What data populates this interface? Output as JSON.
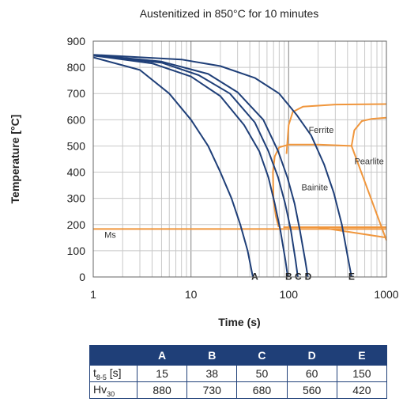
{
  "chart_data": {
    "type": "line",
    "title": "Austenitized in 850°C for 10 minutes",
    "xlabel": "Time (s)",
    "ylabel": "Temperature [°C]",
    "xscale": "log",
    "xlim": [
      1,
      1000
    ],
    "ylim": [
      0,
      900
    ],
    "xticks": [
      {
        "value": 1,
        "label": "1"
      },
      {
        "value": 10,
        "label": "10"
      },
      {
        "value": 100,
        "label": "100"
      },
      {
        "value": 1000,
        "label": "1000"
      }
    ],
    "yticks": [
      0,
      100,
      200,
      300,
      400,
      500,
      600,
      700,
      800,
      900
    ],
    "grid": true,
    "colors": {
      "cooling": "#1f3f78",
      "transformation": "#f0963c"
    },
    "cooling_curves": [
      {
        "name": "A",
        "label_at": [
          45,
          -20
        ],
        "points": [
          [
            1,
            838
          ],
          [
            3,
            790
          ],
          [
            6,
            700
          ],
          [
            10,
            600
          ],
          [
            15,
            500
          ],
          [
            20,
            400
          ],
          [
            26,
            300
          ],
          [
            32,
            200
          ],
          [
            38,
            100
          ],
          [
            43,
            0
          ]
        ]
      },
      {
        "name": "B",
        "label_at": [
          100,
          -20
        ],
        "points": [
          [
            1,
            845
          ],
          [
            4,
            815
          ],
          [
            10,
            765
          ],
          [
            20,
            690
          ],
          [
            35,
            580
          ],
          [
            50,
            480
          ],
          [
            62,
            380
          ],
          [
            72,
            280
          ],
          [
            82,
            180
          ],
          [
            93,
            60
          ],
          [
            98,
            0
          ]
        ]
      },
      {
        "name": "C",
        "label_at": [
          125,
          -20
        ],
        "points": [
          [
            1,
            845
          ],
          [
            5,
            818
          ],
          [
            12,
            770
          ],
          [
            25,
            700
          ],
          [
            45,
            590
          ],
          [
            62,
            480
          ],
          [
            78,
            380
          ],
          [
            92,
            280
          ],
          [
            105,
            180
          ],
          [
            118,
            60
          ],
          [
            124,
            0
          ]
        ]
      },
      {
        "name": "D",
        "label_at": [
          158,
          -20
        ],
        "points": [
          [
            1,
            847
          ],
          [
            5,
            822
          ],
          [
            15,
            775
          ],
          [
            30,
            705
          ],
          [
            55,
            600
          ],
          [
            78,
            480
          ],
          [
            97,
            380
          ],
          [
            115,
            280
          ],
          [
            130,
            180
          ],
          [
            148,
            60
          ],
          [
            157,
            0
          ]
        ]
      },
      {
        "name": "E",
        "label_at": [
          440,
          -20
        ],
        "points": [
          [
            1,
            848
          ],
          [
            8,
            830
          ],
          [
            20,
            805
          ],
          [
            45,
            760
          ],
          [
            80,
            700
          ],
          [
            120,
            620
          ],
          [
            170,
            540
          ],
          [
            230,
            430
          ],
          [
            290,
            320
          ],
          [
            350,
            200
          ],
          [
            405,
            70
          ],
          [
            440,
            0
          ]
        ]
      }
    ],
    "transformation_lines": [
      {
        "points": [
          [
            79,
            190
          ],
          [
            74,
            230
          ],
          [
            70,
            290
          ],
          [
            69,
            400
          ],
          [
            72,
            460
          ],
          [
            80,
            495
          ],
          [
            100,
            505
          ],
          [
            200,
            505
          ],
          [
            440,
            500
          ]
        ]
      },
      {
        "points": [
          [
            88,
            190
          ],
          [
            1000,
            190
          ]
        ]
      },
      {
        "points": [
          [
            1,
            183
          ],
          [
            1000,
            183
          ]
        ]
      },
      {
        "points": [
          [
            200,
            190
          ],
          [
            1000,
            150
          ]
        ]
      },
      {
        "points": [
          [
            95,
            470
          ],
          [
            100,
            580
          ],
          [
            110,
            630
          ],
          [
            140,
            650
          ],
          [
            300,
            658
          ],
          [
            1000,
            660
          ]
        ]
      },
      {
        "points": [
          [
            440,
            500
          ],
          [
            470,
            560
          ],
          [
            560,
            595
          ],
          [
            700,
            603
          ],
          [
            1000,
            608
          ]
        ]
      },
      {
        "points": [
          [
            440,
            500
          ],
          [
            1000,
            140
          ]
        ]
      }
    ],
    "annotations": [
      {
        "text": "Ferrite",
        "at": [
          160,
          550
        ]
      },
      {
        "text": "Pearlite",
        "at": [
          470,
          430
        ]
      },
      {
        "text": "Bainite",
        "at": [
          135,
          330
        ]
      },
      {
        "text": "Ms",
        "at": [
          1.3,
          150
        ]
      }
    ]
  },
  "table": {
    "headers": [
      "",
      "A",
      "B",
      "C",
      "D",
      "E"
    ],
    "rows": [
      {
        "label_main": "t",
        "label_sub": "8-5",
        "label_unit": "[s]",
        "values": [
          "15",
          "38",
          "50",
          "60",
          "150"
        ]
      },
      {
        "label_main": "Hv",
        "label_sub": "30",
        "label_unit": "",
        "values": [
          "880",
          "730",
          "680",
          "560",
          "420"
        ]
      }
    ]
  }
}
